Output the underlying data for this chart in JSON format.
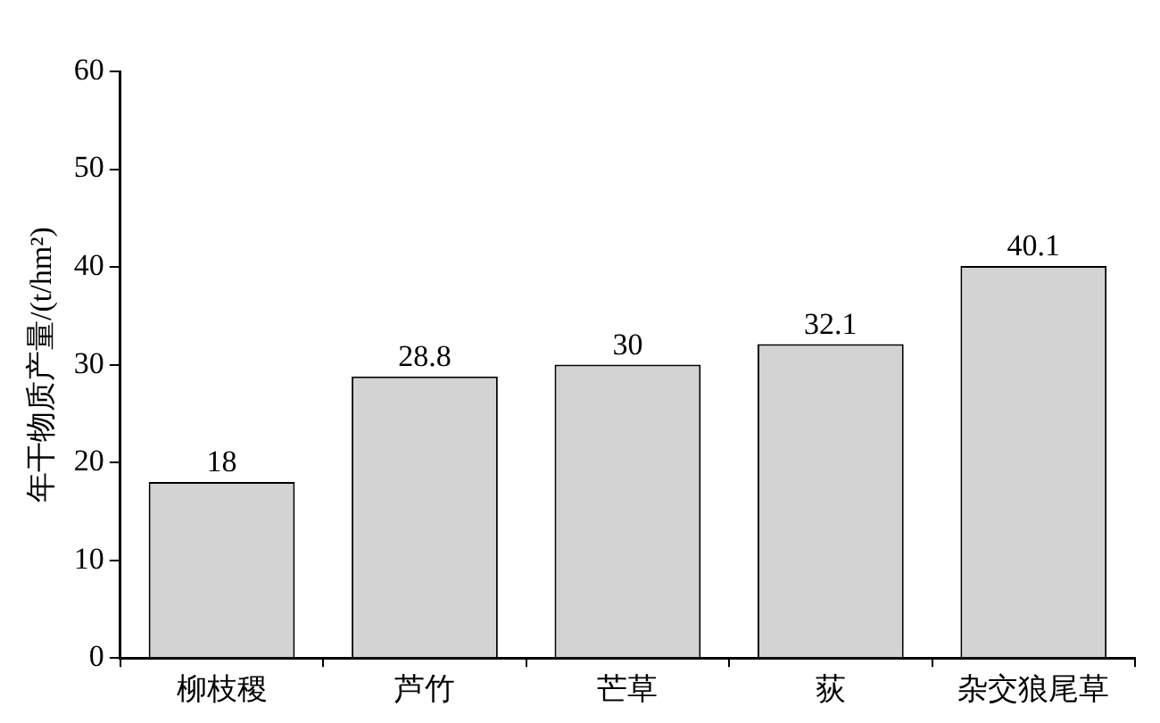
{
  "chart_data": {
    "type": "bar",
    "ylabel": "年干物质产量/(t/hm²)",
    "categories": [
      "柳枝稷",
      "芦竹",
      "芒草",
      "荻",
      "杂交狼尾草"
    ],
    "values": [
      18,
      28.8,
      30,
      32.1,
      40.1
    ],
    "color": "#d3d3d3",
    "ylim": [
      0,
      60
    ],
    "yticks": [
      0,
      10,
      20,
      30,
      40,
      50,
      60
    ],
    "grid": false,
    "legend": false,
    "data_labels": true
  }
}
